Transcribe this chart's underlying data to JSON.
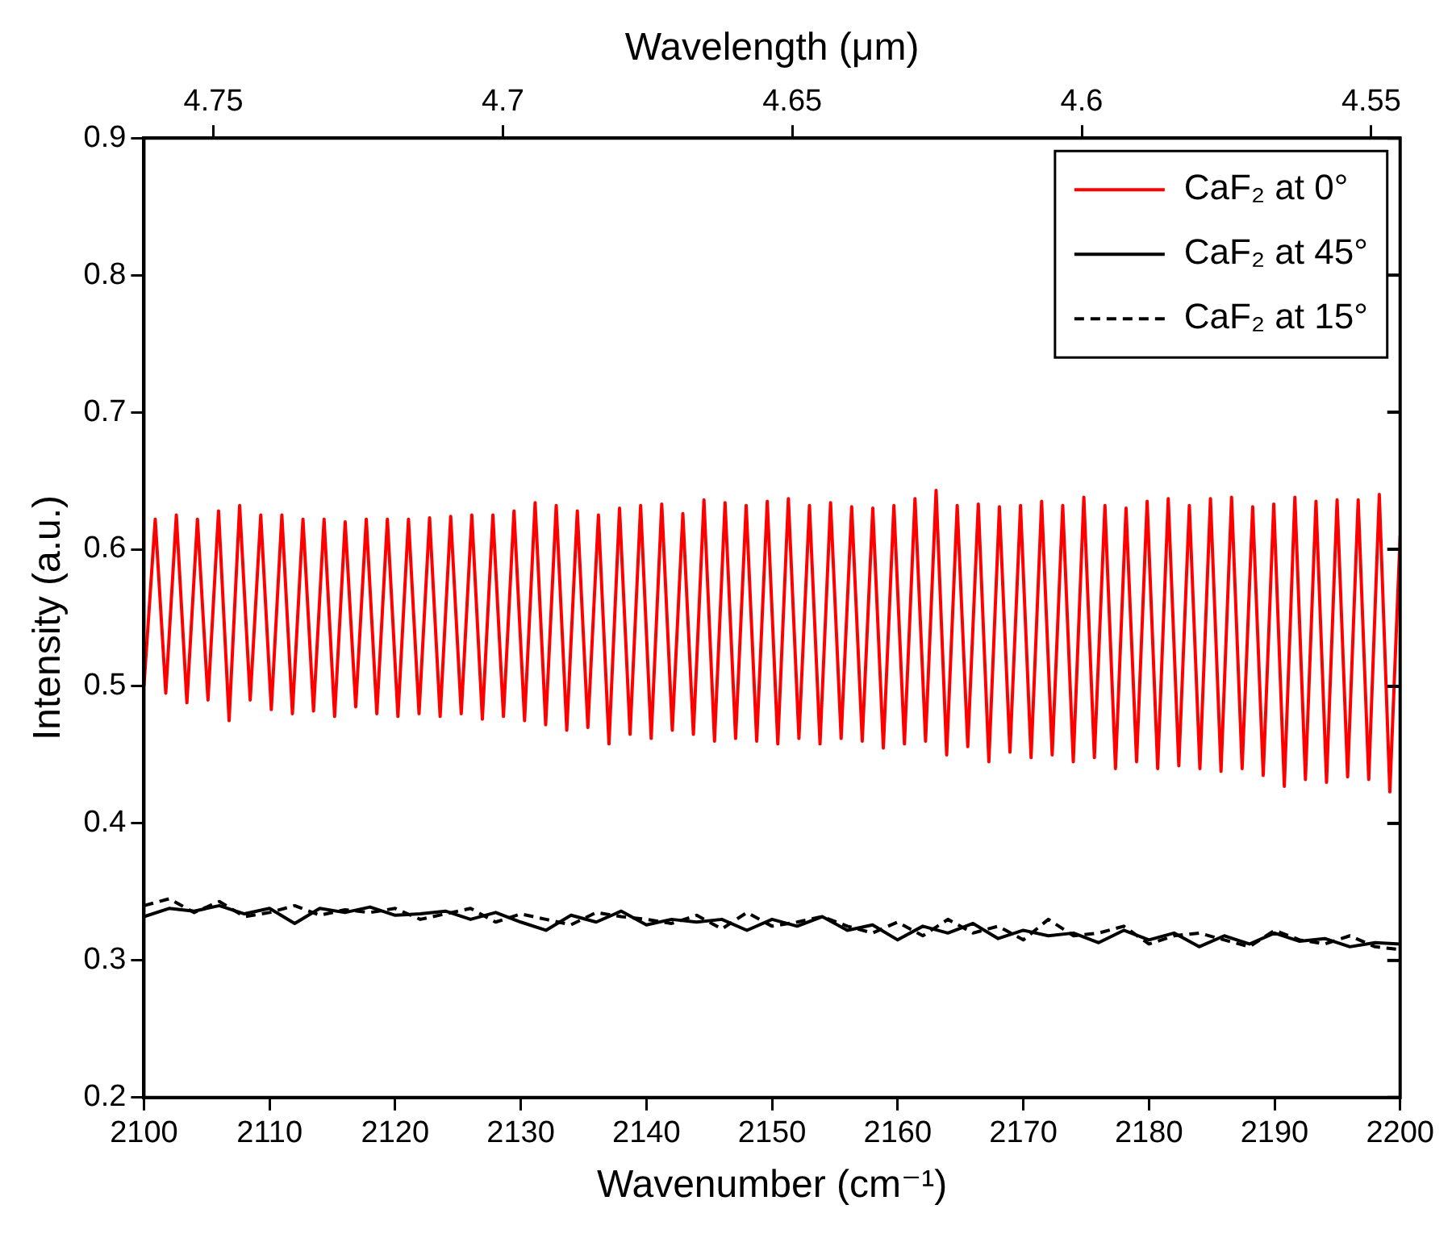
{
  "chart_data": {
    "type": "line",
    "xlabel": "Wavenumber (cm⁻¹)",
    "ylabel": "Intensity (a.u.)",
    "x2label": "Wavelength (μm)",
    "xlim": [
      2100,
      2200
    ],
    "xticks": [
      2100,
      2110,
      2120,
      2130,
      2140,
      2150,
      2160,
      2170,
      2180,
      2190,
      2200
    ],
    "x2lim": [
      4.762,
      4.545
    ],
    "x2ticks": [
      4.75,
      4.7,
      4.65,
      4.6,
      4.55
    ],
    "ylim": [
      0.2,
      0.9
    ],
    "yticks": [
      0.2,
      0.3,
      0.4,
      0.5,
      0.6,
      0.7,
      0.8,
      0.9
    ],
    "grid": false,
    "legend": "top right",
    "marker": "none",
    "series": [
      {
        "name": "CaF₂ at 0°",
        "color": "#ff0000",
        "line_style": "solid",
        "x": [
          2100,
          2100.9,
          2101.74,
          2102.58,
          2103.42,
          2104.26,
          2105.1,
          2105.94,
          2106.78,
          2107.62,
          2108.46,
          2109.3,
          2110.14,
          2110.98,
          2111.82,
          2112.66,
          2113.5,
          2114.34,
          2115.18,
          2116.02,
          2116.86,
          2117.7,
          2118.54,
          2119.38,
          2120.22,
          2121.06,
          2121.9,
          2122.74,
          2123.58,
          2124.42,
          2125.26,
          2126.1,
          2126.94,
          2127.78,
          2128.62,
          2129.46,
          2130.3,
          2131.14,
          2131.98,
          2132.82,
          2133.66,
          2134.5,
          2135.34,
          2136.18,
          2137.02,
          2137.86,
          2138.7,
          2139.54,
          2140.38,
          2141.22,
          2142.06,
          2142.9,
          2143.74,
          2144.58,
          2145.42,
          2146.26,
          2147.1,
          2147.94,
          2148.78,
          2149.62,
          2150.46,
          2151.3,
          2152.14,
          2152.98,
          2153.82,
          2154.66,
          2155.5,
          2156.34,
          2157.18,
          2158.02,
          2158.86,
          2159.7,
          2160.54,
          2161.38,
          2162.22,
          2163.06,
          2163.9,
          2164.74,
          2165.58,
          2166.42,
          2167.26,
          2168.1,
          2168.94,
          2169.78,
          2170.62,
          2171.46,
          2172.3,
          2173.14,
          2173.98,
          2174.82,
          2175.66,
          2176.5,
          2177.34,
          2178.18,
          2179.02,
          2179.86,
          2180.7,
          2181.54,
          2182.38,
          2183.22,
          2184.06,
          2184.9,
          2185.74,
          2186.58,
          2187.42,
          2188.26,
          2189.1,
          2189.94,
          2190.78,
          2191.62,
          2192.46,
          2193.3,
          2194.14,
          2194.98,
          2195.82,
          2196.66,
          2197.5,
          2198.34,
          2199.18,
          2200
        ],
        "values": [
          0.5,
          0.622,
          0.495,
          0.625,
          0.488,
          0.622,
          0.49,
          0.628,
          0.475,
          0.632,
          0.49,
          0.625,
          0.483,
          0.625,
          0.48,
          0.622,
          0.482,
          0.622,
          0.478,
          0.62,
          0.485,
          0.622,
          0.48,
          0.622,
          0.478,
          0.622,
          0.48,
          0.623,
          0.478,
          0.624,
          0.48,
          0.625,
          0.476,
          0.625,
          0.478,
          0.628,
          0.475,
          0.634,
          0.472,
          0.632,
          0.468,
          0.628,
          0.47,
          0.625,
          0.458,
          0.63,
          0.465,
          0.632,
          0.462,
          0.633,
          0.468,
          0.626,
          0.465,
          0.636,
          0.46,
          0.634,
          0.462,
          0.632,
          0.46,
          0.635,
          0.458,
          0.637,
          0.462,
          0.632,
          0.458,
          0.634,
          0.462,
          0.631,
          0.46,
          0.63,
          0.455,
          0.632,
          0.458,
          0.637,
          0.46,
          0.643,
          0.45,
          0.632,
          0.456,
          0.633,
          0.445,
          0.631,
          0.452,
          0.632,
          0.448,
          0.635,
          0.45,
          0.632,
          0.445,
          0.638,
          0.448,
          0.632,
          0.44,
          0.63,
          0.445,
          0.635,
          0.44,
          0.637,
          0.442,
          0.632,
          0.44,
          0.637,
          0.438,
          0.638,
          0.44,
          0.631,
          0.435,
          0.633,
          0.427,
          0.638,
          0.432,
          0.635,
          0.43,
          0.636,
          0.434,
          0.636,
          0.432,
          0.64,
          0.423,
          0.61
        ]
      },
      {
        "name": "CaF₂ at 45°",
        "color": "#000000",
        "line_style": "solid",
        "x": [
          2100,
          2102,
          2104,
          2106,
          2108,
          2110,
          2112,
          2114,
          2116,
          2118,
          2120,
          2122,
          2124,
          2126,
          2128,
          2130,
          2132,
          2134,
          2136,
          2138,
          2140,
          2142,
          2144,
          2146,
          2148,
          2150,
          2152,
          2154,
          2156,
          2158,
          2160,
          2162,
          2164,
          2166,
          2168,
          2170,
          2172,
          2174,
          2176,
          2178,
          2180,
          2182,
          2184,
          2186,
          2188,
          2190,
          2192,
          2194,
          2196,
          2198,
          2200
        ],
        "values": [
          0.332,
          0.338,
          0.336,
          0.34,
          0.334,
          0.338,
          0.327,
          0.338,
          0.335,
          0.339,
          0.333,
          0.334,
          0.336,
          0.33,
          0.335,
          0.328,
          0.322,
          0.333,
          0.328,
          0.336,
          0.326,
          0.33,
          0.328,
          0.33,
          0.322,
          0.33,
          0.325,
          0.332,
          0.322,
          0.326,
          0.315,
          0.325,
          0.32,
          0.327,
          0.316,
          0.322,
          0.318,
          0.32,
          0.313,
          0.322,
          0.315,
          0.32,
          0.31,
          0.318,
          0.312,
          0.32,
          0.314,
          0.316,
          0.31,
          0.313,
          0.312
        ]
      },
      {
        "name": "CaF₂ at 15°",
        "color": "#000000",
        "line_style": "dashed",
        "x": [
          2100,
          2102,
          2104,
          2106,
          2108,
          2110,
          2112,
          2114,
          2116,
          2118,
          2120,
          2122,
          2124,
          2126,
          2128,
          2130,
          2132,
          2134,
          2136,
          2138,
          2140,
          2142,
          2144,
          2146,
          2148,
          2150,
          2152,
          2154,
          2156,
          2158,
          2160,
          2162,
          2164,
          2166,
          2168,
          2170,
          2172,
          2174,
          2176,
          2178,
          2180,
          2182,
          2184,
          2186,
          2188,
          2190,
          2192,
          2194,
          2196,
          2198,
          2200
        ],
        "values": [
          0.34,
          0.345,
          0.335,
          0.343,
          0.332,
          0.335,
          0.34,
          0.333,
          0.337,
          0.335,
          0.338,
          0.33,
          0.334,
          0.338,
          0.328,
          0.334,
          0.33,
          0.326,
          0.335,
          0.332,
          0.33,
          0.327,
          0.333,
          0.323,
          0.335,
          0.325,
          0.328,
          0.332,
          0.325,
          0.32,
          0.328,
          0.318,
          0.33,
          0.32,
          0.325,
          0.315,
          0.33,
          0.318,
          0.32,
          0.325,
          0.312,
          0.318,
          0.32,
          0.315,
          0.31,
          0.322,
          0.315,
          0.312,
          0.318,
          0.31,
          0.308
        ]
      }
    ]
  }
}
